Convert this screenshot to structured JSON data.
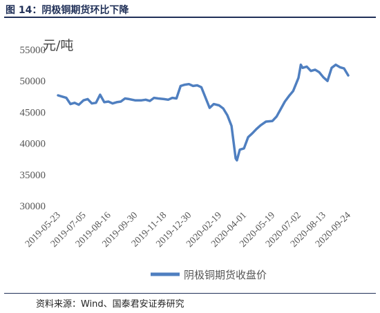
{
  "figure": {
    "title": "图 14：阴极铜期货环比下降",
    "source": "资料来源：Wind、国泰君安证券研究"
  },
  "chart_data": {
    "type": "line",
    "title": "",
    "xlabel": "",
    "ylabel": "元/吨",
    "ylim": [
      30000,
      55000
    ],
    "y_ticks": [
      30000,
      35000,
      40000,
      45000,
      50000,
      55000
    ],
    "x_tick_labels": [
      "2019-05-23",
      "2019-07-05",
      "2019-08-16",
      "2019-09-30",
      "2019-11-18",
      "2019-12-30",
      "2020-02-19",
      "2020-04-01",
      "2020-05-19",
      "2020-07-02",
      "2020-08-13",
      "2020-09-24"
    ],
    "grid": false,
    "legend_position": "bottom",
    "series": [
      {
        "name": "阴极铜期货收盘价",
        "color": "#4f7fc0",
        "x": [
          "2019-05-23",
          "2019-05-30",
          "2019-06-06",
          "2019-06-13",
          "2019-06-20",
          "2019-06-27",
          "2019-07-05",
          "2019-07-12",
          "2019-07-19",
          "2019-07-26",
          "2019-08-02",
          "2019-08-09",
          "2019-08-16",
          "2019-08-23",
          "2019-08-30",
          "2019-09-06",
          "2019-09-13",
          "2019-09-20",
          "2019-09-30",
          "2019-10-11",
          "2019-10-18",
          "2019-10-25",
          "2019-11-01",
          "2019-11-08",
          "2019-11-18",
          "2019-11-25",
          "2019-12-02",
          "2019-12-09",
          "2019-12-16",
          "2019-12-23",
          "2019-12-30",
          "2020-01-06",
          "2020-01-13",
          "2020-01-20",
          "2020-02-03",
          "2020-02-10",
          "2020-02-19",
          "2020-02-26",
          "2020-03-04",
          "2020-03-11",
          "2020-03-18",
          "2020-03-20",
          "2020-03-25",
          "2020-04-01",
          "2020-04-08",
          "2020-04-15",
          "2020-04-22",
          "2020-04-29",
          "2020-05-08",
          "2020-05-19",
          "2020-05-26",
          "2020-06-02",
          "2020-06-09",
          "2020-06-16",
          "2020-06-23",
          "2020-07-02",
          "2020-07-06",
          "2020-07-09",
          "2020-07-16",
          "2020-07-23",
          "2020-07-30",
          "2020-08-06",
          "2020-08-13",
          "2020-08-20",
          "2020-08-27",
          "2020-09-03",
          "2020-09-10",
          "2020-09-17",
          "2020-09-24"
        ],
        "y": [
          47700,
          47500,
          47300,
          46300,
          46500,
          46200,
          46900,
          47100,
          46400,
          46500,
          47800,
          46600,
          46700,
          46400,
          46600,
          46700,
          47200,
          47100,
          46900,
          46900,
          47000,
          46800,
          47300,
          47200,
          47100,
          47000,
          47300,
          47200,
          49200,
          49400,
          49500,
          49200,
          49300,
          49000,
          45700,
          46300,
          46100,
          45600,
          44500,
          42800,
          37600,
          37300,
          39000,
          39200,
          41000,
          41600,
          42300,
          42900,
          43500,
          43600,
          44300,
          45500,
          46700,
          47600,
          48400,
          50500,
          52600,
          52100,
          52300,
          51600,
          51800,
          51400,
          50600,
          50000,
          52100,
          52600,
          52200,
          52000,
          50900
        ]
      }
    ]
  }
}
